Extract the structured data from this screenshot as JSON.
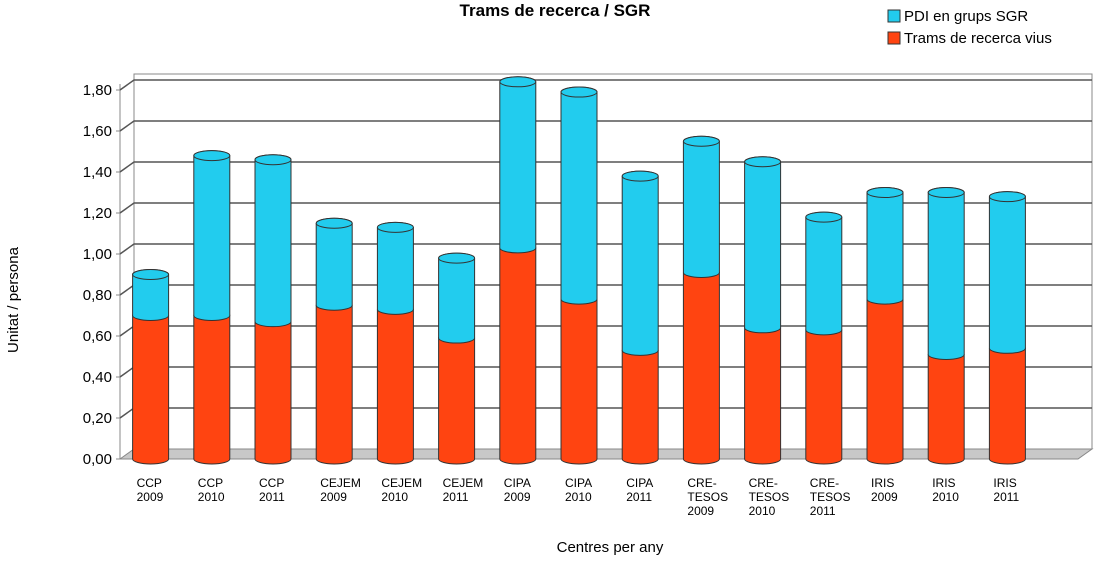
{
  "chart_data": {
    "type": "bar",
    "stacked": true,
    "title": "Trams de recerca / SGR",
    "x_label": "Centres per any",
    "y_label": "Unitat / persona",
    "categories": [
      "CCP 2009",
      "CCP 2010",
      "CCP 2011",
      "CEJEM 2009",
      "CEJEM 2010",
      "CEJEM 2011",
      "CIPA 2009",
      "CIPA 2010",
      "CIPA 2011",
      "CRE-TESOS 2009",
      "CRE-TESOS 2010",
      "CRE-TESOS 2011",
      "IRIS 2009",
      "IRIS 2010",
      "IRIS 2011"
    ],
    "series": [
      {
        "name": "Trams de recerca vius",
        "color": "#ff4411",
        "values": [
          0.7,
          0.7,
          0.67,
          0.75,
          0.73,
          0.59,
          1.03,
          0.78,
          0.53,
          0.91,
          0.64,
          0.63,
          0.78,
          0.51,
          0.54
        ]
      },
      {
        "name": "PDI en grups SGR",
        "color": "#22ccee",
        "values": [
          0.2,
          0.78,
          0.79,
          0.4,
          0.4,
          0.39,
          0.81,
          1.01,
          0.85,
          0.64,
          0.81,
          0.55,
          0.52,
          0.79,
          0.74
        ]
      }
    ],
    "ylim": [
      0,
      1.8
    ],
    "yticks": [
      {
        "value": 0,
        "label": "0,00"
      },
      {
        "value": 0.2,
        "label": "0,20"
      },
      {
        "value": 0.4,
        "label": "0,40"
      },
      {
        "value": 0.6,
        "label": "0,60"
      },
      {
        "value": 0.8,
        "label": "0,80"
      },
      {
        "value": 1,
        "label": "1,00"
      },
      {
        "value": 1.2,
        "label": "1,20"
      },
      {
        "value": 1.4,
        "label": "1,40"
      },
      {
        "value": 1.6,
        "label": "1,60"
      },
      {
        "value": 1.8,
        "label": "1,80"
      }
    ],
    "grid": true,
    "legend": "top-right"
  }
}
